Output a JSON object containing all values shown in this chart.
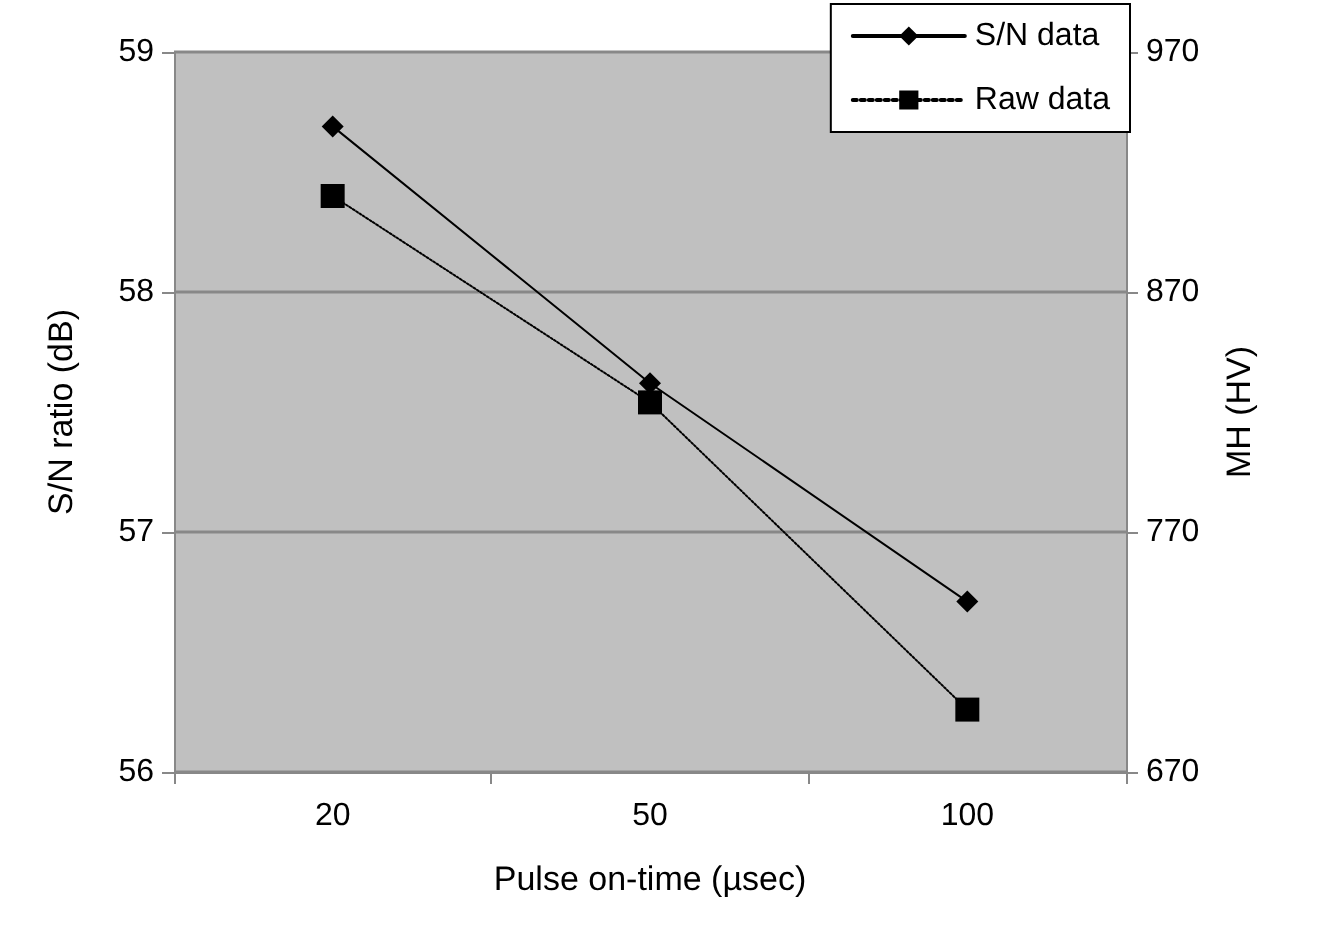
{
  "chart_data": {
    "type": "line",
    "categories": [
      "20",
      "50",
      "100"
    ],
    "xlabel": "Pulse on-time (µsec)",
    "ylabel": "S/N ratio (dB)",
    "y2label": "MH (HV)",
    "series": [
      {
        "name": "S/N data",
        "color": "#000000",
        "values": [
          58.69,
          57.62,
          56.71
        ],
        "marker": "diamond",
        "line_style": "solid"
      },
      {
        "name": "Raw data",
        "color": "#000000",
        "values": [
          910,
          824,
          696
        ],
        "marker": "square",
        "line_style": "dotted",
        "axis": "y2"
      }
    ],
    "ylim": [
      56,
      59
    ],
    "yticks": [
      56,
      57,
      58,
      59
    ],
    "y2lim": [
      670,
      970
    ],
    "y2ticks": [
      670,
      770,
      870,
      970
    ],
    "grid": "y",
    "legend": "top right"
  }
}
